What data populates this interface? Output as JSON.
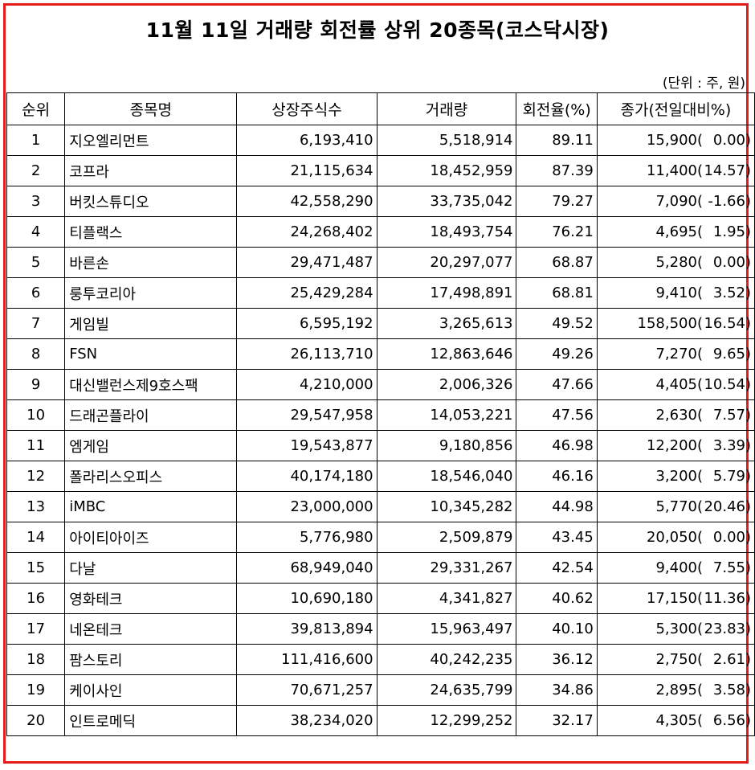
{
  "title": "11월 11일 거래량 회전률 상위 20종목(코스닥시장)",
  "unit_note": "(단위 : 주, 원)",
  "colors": {
    "frame": "#e31b1b"
  },
  "columns": [
    "순위",
    "종목명",
    "상장주식수",
    "거래량",
    "회전율(%)",
    "종가(전일대비%)"
  ],
  "rows": [
    {
      "rank": "1",
      "name": "지오엘리먼트",
      "shares": "6,193,410",
      "volume": "5,518,914",
      "turnover": "89.11",
      "close": "15,900(",
      "change": "0.00)"
    },
    {
      "rank": "2",
      "name": "코프라",
      "shares": "21,115,634",
      "volume": "18,452,959",
      "turnover": "87.39",
      "close": "11,400(",
      "change": "14.57)"
    },
    {
      "rank": "3",
      "name": "버킷스튜디오",
      "shares": "42,558,290",
      "volume": "33,735,042",
      "turnover": "79.27",
      "close": "7,090(",
      "change": "-1.66)"
    },
    {
      "rank": "4",
      "name": "티플랙스",
      "shares": "24,268,402",
      "volume": "18,493,754",
      "turnover": "76.21",
      "close": "4,695(",
      "change": "1.95)"
    },
    {
      "rank": "5",
      "name": "바른손",
      "shares": "29,471,487",
      "volume": "20,297,077",
      "turnover": "68.87",
      "close": "5,280(",
      "change": "0.00)"
    },
    {
      "rank": "6",
      "name": "룽투코리아",
      "shares": "25,429,284",
      "volume": "17,498,891",
      "turnover": "68.81",
      "close": "9,410(",
      "change": "3.52)"
    },
    {
      "rank": "7",
      "name": "게임빌",
      "shares": "6,595,192",
      "volume": "3,265,613",
      "turnover": "49.52",
      "close": "158,500(",
      "change": "16.54)"
    },
    {
      "rank": "8",
      "name": "FSN",
      "shares": "26,113,710",
      "volume": "12,863,646",
      "turnover": "49.26",
      "close": "7,270(",
      "change": "9.65)"
    },
    {
      "rank": "9",
      "name": "대신밸런스제9호스팩",
      "shares": "4,210,000",
      "volume": "2,006,326",
      "turnover": "47.66",
      "close": "4,405(",
      "change": "10.54)"
    },
    {
      "rank": "10",
      "name": "드래곤플라이",
      "shares": "29,547,958",
      "volume": "14,053,221",
      "turnover": "47.56",
      "close": "2,630(",
      "change": "7.57)"
    },
    {
      "rank": "11",
      "name": "엠게임",
      "shares": "19,543,877",
      "volume": "9,180,856",
      "turnover": "46.98",
      "close": "12,200(",
      "change": "3.39)"
    },
    {
      "rank": "12",
      "name": "폴라리스오피스",
      "shares": "40,174,180",
      "volume": "18,546,040",
      "turnover": "46.16",
      "close": "3,200(",
      "change": "5.79)"
    },
    {
      "rank": "13",
      "name": "iMBC",
      "shares": "23,000,000",
      "volume": "10,345,282",
      "turnover": "44.98",
      "close": "5,770(",
      "change": "20.46)"
    },
    {
      "rank": "14",
      "name": "아이티아이즈",
      "shares": "5,776,980",
      "volume": "2,509,879",
      "turnover": "43.45",
      "close": "20,050(",
      "change": "0.00)"
    },
    {
      "rank": "15",
      "name": "다날",
      "shares": "68,949,040",
      "volume": "29,331,267",
      "turnover": "42.54",
      "close": "9,400(",
      "change": "7.55)"
    },
    {
      "rank": "16",
      "name": "영화테크",
      "shares": "10,690,180",
      "volume": "4,341,827",
      "turnover": "40.62",
      "close": "17,150(",
      "change": "11.36)"
    },
    {
      "rank": "17",
      "name": "네온테크",
      "shares": "39,813,894",
      "volume": "15,963,497",
      "turnover": "40.10",
      "close": "5,300(",
      "change": "23.83)"
    },
    {
      "rank": "18",
      "name": "팜스토리",
      "shares": "111,416,600",
      "volume": "40,242,235",
      "turnover": "36.12",
      "close": "2,750(",
      "change": "2.61)"
    },
    {
      "rank": "19",
      "name": "케이사인",
      "shares": "70,671,257",
      "volume": "24,635,799",
      "turnover": "34.86",
      "close": "2,895(",
      "change": "3.58)"
    },
    {
      "rank": "20",
      "name": "인트로메딕",
      "shares": "38,234,020",
      "volume": "12,299,252",
      "turnover": "32.17",
      "close": "4,305(",
      "change": "6.56)"
    }
  ]
}
